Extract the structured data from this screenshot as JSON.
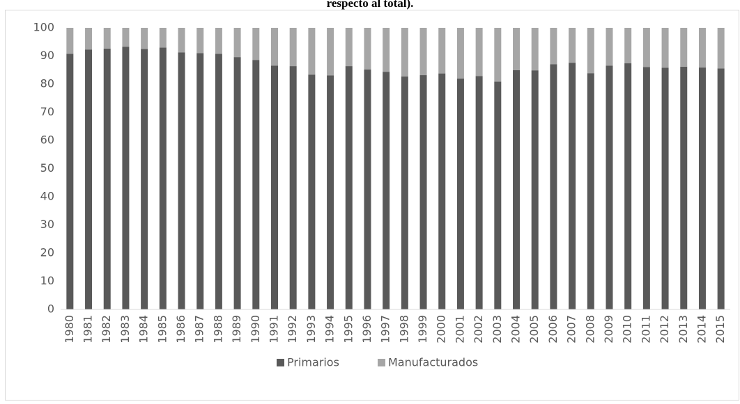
{
  "chart_data": {
    "type": "stacked_bar",
    "title": "respecto al total).",
    "categories": [
      "1980",
      "1981",
      "1982",
      "1983",
      "1984",
      "1985",
      "1986",
      "1987",
      "1988",
      "1989",
      "1990",
      "1991",
      "1992",
      "1993",
      "1994",
      "1995",
      "1996",
      "1997",
      "1998",
      "1999",
      "2000",
      "2001",
      "2002",
      "2003",
      "2004",
      "2005",
      "2006",
      "2007",
      "2008",
      "2009",
      "2010",
      "2011",
      "2012",
      "2013",
      "2014",
      "2015"
    ],
    "series": [
      {
        "name": "Primarios",
        "color": "#595959",
        "values": [
          90.8,
          92.3,
          92.6,
          93.3,
          92.5,
          93.0,
          91.3,
          91.0,
          90.8,
          89.6,
          88.6,
          86.6,
          86.4,
          83.4,
          83.1,
          86.4,
          85.2,
          84.4,
          82.7,
          83.2,
          83.8,
          82.0,
          82.9,
          80.9,
          85.0,
          84.9,
          87.1,
          87.6,
          83.9,
          86.6,
          87.4,
          86.1,
          85.8,
          86.2,
          85.9,
          85.6
        ]
      },
      {
        "name": "Manufacturados",
        "color": "#a6a6a6",
        "values": [
          9.2,
          7.7,
          7.4,
          6.7,
          7.5,
          7.0,
          8.7,
          9.0,
          9.2,
          10.4,
          11.4,
          13.4,
          13.6,
          16.6,
          16.9,
          13.6,
          14.8,
          15.6,
          17.3,
          16.8,
          16.2,
          18.0,
          17.1,
          19.1,
          15.0,
          15.1,
          12.9,
          12.4,
          16.1,
          13.4,
          12.6,
          13.9,
          14.2,
          13.8,
          14.1,
          14.4
        ]
      }
    ],
    "ylim": [
      0,
      100
    ],
    "yticks": [
      0,
      10,
      20,
      30,
      40,
      50,
      60,
      70,
      80,
      90,
      100
    ],
    "grid": false,
    "legend": "bottom"
  }
}
